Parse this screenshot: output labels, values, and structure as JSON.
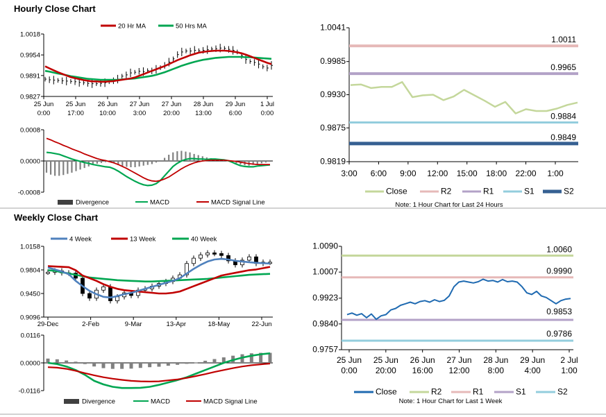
{
  "colors": {
    "ma20": "#c00000",
    "ma50": "#00a651",
    "w4": "#4f81bd",
    "w13": "#c00000",
    "w40": "#00a651",
    "macd": "#00a651",
    "signal": "#c00000",
    "divergence": "#808080",
    "close_hourly": "#c4d79b",
    "close_weekly": "#1f6ab1",
    "r2_hourly": "#e6b9b8",
    "r1_hourly": "#b3a2c7",
    "s1_hourly": "#93cddd",
    "s2_hourly": "#366092",
    "r2_weekly": "#c4d79b",
    "r1_weekly": "#e6b9b8",
    "s1_weekly": "#b3a2c7",
    "s2_weekly": "#93cddd",
    "divider": "#a6a6a6"
  },
  "sections": {
    "hourly_title": "Hourly Close Chart",
    "weekly_title": "Weekly Close Chart"
  },
  "chart_data": [
    {
      "id": "hourly_price",
      "type": "line",
      "legend": [
        "20 Hr MA",
        "50 Hrs MA"
      ],
      "yticks": [
        "1.0018",
        "0.9954",
        "0.9891",
        "0.9827"
      ],
      "ylim": [
        0.9827,
        1.0018
      ],
      "xticks": [
        [
          "25 Jun",
          "0:00"
        ],
        [
          "25 Jun",
          "17:00"
        ],
        [
          "26 Jun",
          "10:00"
        ],
        [
          "27 Jun",
          "3:00"
        ],
        [
          "27 Jun",
          "20:00"
        ],
        [
          "28 Jun",
          "13:00"
        ],
        [
          "29 Jun",
          "6:00"
        ],
        [
          "1 Jul",
          "0:00"
        ]
      ],
      "close": [
        0.988,
        0.9878,
        0.9877,
        0.9876,
        0.9875,
        0.9874,
        0.9873,
        0.9872,
        0.987,
        0.9869,
        0.9867,
        0.9866,
        0.9866,
        0.9867,
        0.9869,
        0.9872,
        0.9875,
        0.988,
        0.9889,
        0.9893,
        0.9899,
        0.9901,
        0.9904,
        0.9903,
        0.9906,
        0.9905,
        0.991,
        0.9915,
        0.9922,
        0.9932,
        0.9942,
        0.9955,
        0.9963,
        0.9966,
        0.9966,
        0.9968,
        0.9967,
        0.9968,
        0.997,
        0.9972,
        0.9973,
        0.9975,
        0.9974,
        0.9971,
        0.9968,
        0.9963,
        0.9952,
        0.994,
        0.9934,
        0.9931,
        0.9926,
        0.9918,
        0.9914,
        0.9922
      ],
      "ma20": [
        0.9919,
        0.9913,
        0.9907,
        0.9901,
        0.9896,
        0.9891,
        0.9886,
        0.9883,
        0.988,
        0.9877,
        0.9875,
        0.9873,
        0.9873,
        0.9872,
        0.9872,
        0.9873,
        0.9874,
        0.9876,
        0.9878,
        0.988,
        0.9882,
        0.9885,
        0.989,
        0.9895,
        0.99,
        0.9905,
        0.991,
        0.9915,
        0.992,
        0.9926,
        0.9932,
        0.9938,
        0.9943,
        0.9948,
        0.9953,
        0.9957,
        0.9961,
        0.9963,
        0.9965,
        0.9966,
        0.9967,
        0.9967,
        0.9967,
        0.9966,
        0.9964,
        0.9962,
        0.9959,
        0.9955,
        0.995,
        0.9945,
        0.994,
        0.9935,
        0.993,
        0.9926
      ],
      "ma50": [
        0.9905,
        0.9903,
        0.99,
        0.9897,
        0.9895,
        0.9892,
        0.9889,
        0.9887,
        0.9885,
        0.9883,
        0.9881,
        0.988,
        0.9879,
        0.9878,
        0.9878,
        0.9878,
        0.9878,
        0.9878,
        0.9879,
        0.988,
        0.9881,
        0.9882,
        0.9884,
        0.9886,
        0.9888,
        0.989,
        0.9893,
        0.9897,
        0.9901,
        0.9906,
        0.9911,
        0.9916,
        0.9921,
        0.9925,
        0.9929,
        0.9933,
        0.9936,
        0.9939,
        0.9941,
        0.9943,
        0.9945,
        0.9946,
        0.9947,
        0.9948,
        0.9948,
        0.9948,
        0.9948,
        0.9947,
        0.9947,
        0.9946,
        0.9945,
        0.9944,
        0.9943,
        0.9942
      ]
    },
    {
      "id": "hourly_macd",
      "type": "bar",
      "yticks": [
        "0.0008",
        "0.0000",
        "-0.0008"
      ],
      "ylim": [
        -0.0008,
        0.0008
      ],
      "legend": [
        "Divergence",
        "MACD",
        "MACD Signal Line"
      ],
      "divergence": [
        -0.0003,
        -0.00035,
        -0.00038,
        -0.00038,
        -0.00036,
        -0.00033,
        -0.0003,
        -0.00026,
        -0.00022,
        -0.00018,
        -0.00014,
        -0.0001,
        -7e-05,
        -5e-05,
        -3e-05,
        -2e-05,
        -6e-05,
        -0.0001,
        -0.00013,
        -0.00015,
        -0.00016,
        -0.00016,
        -0.00014,
        -0.00012,
        -0.0001,
        -8e-05,
        -4e-05,
        0.0,
        8e-05,
        0.00016,
        0.00022,
        0.00025,
        0.00026,
        0.00024,
        0.00022,
        0.00018,
        0.00015,
        0.00012,
        9e-05,
        7e-05,
        5e-05,
        3e-05,
        1e-05,
        -1e-05,
        -3e-05,
        -6e-05,
        -9e-05,
        -0.00011,
        -0.00012,
        -0.0001,
        -8e-05,
        -6e-05,
        -4e-05,
        -2e-05
      ],
      "macd": [
        0.00022,
        0.00021,
        0.00019,
        0.00017,
        0.00013,
        9e-05,
        5e-05,
        2e-05,
        -1e-05,
        -4e-05,
        -6e-05,
        -9e-05,
        -0.00011,
        -0.00013,
        -0.00015,
        -0.00016,
        -0.0002,
        -0.00026,
        -0.00033,
        -0.0004,
        -0.00046,
        -0.00052,
        -0.00057,
        -0.00061,
        -0.00063,
        -0.00062,
        -0.00058,
        -0.0005,
        -0.00038,
        -0.00026,
        -0.00014,
        -6e-05,
        0.0,
        4e-05,
        6e-05,
        6e-05,
        5e-05,
        5e-05,
        4e-05,
        5e-05,
        5e-05,
        4e-05,
        3e-05,
        1e-05,
        -3e-05,
        -8e-05,
        -0.00012,
        -0.00014,
        -0.00015,
        -0.00015,
        -0.00013,
        -0.00012,
        -0.00011,
        -0.0001
      ],
      "signal": [
        0.00058,
        0.00054,
        0.00049,
        0.00045,
        0.0004,
        0.00036,
        0.00031,
        0.00027,
        0.00023,
        0.00018,
        0.00014,
        0.0001,
        6e-05,
        3e-05,
        1e-05,
        -2e-05,
        -5e-05,
        -9e-05,
        -0.00014,
        -0.00019,
        -0.00025,
        -0.00031,
        -0.00037,
        -0.00043,
        -0.00048,
        -0.00051,
        -0.00052,
        -0.0005,
        -0.00046,
        -0.00041,
        -0.00034,
        -0.00027,
        -0.0002,
        -0.00014,
        -9e-05,
        -5e-05,
        -2e-05,
        0.0,
        1e-05,
        2e-05,
        2e-05,
        2e-05,
        2e-05,
        1e-05,
        0.0,
        -1e-05,
        -3e-05,
        -5e-05,
        -7e-05,
        -8e-05,
        -9e-05,
        -9e-05,
        -9e-05,
        -9e-05
      ]
    },
    {
      "id": "hourly_levels",
      "type": "line",
      "yticks": [
        "1.0041",
        "0.9985",
        "0.9930",
        "0.9875",
        "0.9819"
      ],
      "ylim": [
        0.9819,
        1.0041
      ],
      "xticks": [
        "3:00",
        "6:00",
        "9:00",
        "12:00",
        "15:00",
        "18:00",
        "22:00",
        "1:00"
      ],
      "close": [
        0.9946,
        0.9947,
        0.9941,
        0.9943,
        0.9943,
        0.9951,
        0.9926,
        0.9929,
        0.993,
        0.9921,
        0.9927,
        0.9938,
        0.9929,
        0.992,
        0.991,
        0.9918,
        0.9899,
        0.9906,
        0.9903,
        0.9903,
        0.9907,
        0.9913,
        0.9917
      ],
      "levels": [
        {
          "name": "R2",
          "value": 1.0011,
          "label": "1.0011"
        },
        {
          "name": "R1",
          "value": 0.9965,
          "label": "0.9965"
        },
        {
          "name": "S1",
          "value": 0.9884,
          "label": "0.9884"
        },
        {
          "name": "S2",
          "value": 0.9849,
          "label": "0.9849"
        }
      ],
      "legend": [
        "Close",
        "R2",
        "R1",
        "S1",
        "S2"
      ],
      "note": "Note: 1 Hour Chart for Last 24 Hours"
    },
    {
      "id": "weekly_price",
      "type": "line",
      "legend": [
        "4 Week",
        "13 Week",
        "40 Week"
      ],
      "yticks": [
        "1.0158",
        "0.9804",
        "0.9450",
        "0.9096"
      ],
      "ylim": [
        0.9096,
        1.0158
      ],
      "xticks": [
        "29-Dec",
        "2-Feb",
        "9-Mar",
        "13-Apr",
        "18-May",
        "22-Jun"
      ],
      "close": [
        0.977,
        0.979,
        0.976,
        0.9755,
        0.968,
        0.945,
        0.938,
        0.95,
        0.955,
        0.934,
        0.94,
        0.946,
        0.942,
        0.95,
        0.952,
        0.956,
        0.96,
        0.963,
        0.968,
        0.973,
        0.99,
        0.998,
        1.003,
        1.006,
        1.005,
        1.002,
        0.994,
        0.988,
        0.995,
        1.0,
        0.99,
        0.992,
        0.992
      ],
      "w4": [
        0.984,
        0.981,
        0.978,
        0.974,
        0.964,
        0.956,
        0.949,
        0.944,
        0.94,
        0.939,
        0.941,
        0.944,
        0.946,
        0.949,
        0.952,
        0.955,
        0.958,
        0.961,
        0.964,
        0.968,
        0.975,
        0.982,
        0.988,
        0.993,
        0.996,
        0.997,
        0.996,
        0.994,
        0.993,
        0.992,
        0.991,
        0.9905,
        0.99
      ],
      "w13": [
        0.986,
        0.9855,
        0.985,
        0.9845,
        0.98,
        0.972,
        0.968,
        0.964,
        0.959,
        0.955,
        0.952,
        0.95,
        0.949,
        0.948,
        0.947,
        0.946,
        0.945,
        0.945,
        0.946,
        0.948,
        0.952,
        0.956,
        0.96,
        0.964,
        0.968,
        0.972,
        0.974,
        0.976,
        0.978,
        0.98,
        0.981,
        0.983,
        0.985
      ],
      "w40": [
        0.98,
        0.979,
        0.977,
        0.975,
        0.973,
        0.971,
        0.969,
        0.968,
        0.967,
        0.966,
        0.965,
        0.9645,
        0.964,
        0.9635,
        0.963,
        0.963,
        0.9635,
        0.964,
        0.9645,
        0.965,
        0.9655,
        0.966,
        0.9665,
        0.967,
        0.968,
        0.969,
        0.97,
        0.971,
        0.972,
        0.973,
        0.9735,
        0.974,
        0.9745
      ]
    },
    {
      "id": "weekly_macd",
      "type": "bar",
      "yticks": [
        "0.0116",
        "0.0000",
        "-0.0116"
      ],
      "ylim": [
        -0.0116,
        0.0116
      ],
      "legend": [
        "Divergence",
        "MACD",
        "MACD Signal Line"
      ],
      "divergence": [
        0.0018,
        0.0015,
        0.001,
        0.0005,
        -0.0005,
        -0.0015,
        -0.0022,
        -0.0025,
        -0.0025,
        -0.0024,
        -0.0021,
        -0.0018,
        -0.0016,
        -0.0012,
        -0.0008,
        -0.0004,
        0.0002,
        0.0009,
        0.0016,
        0.0023,
        0.003,
        0.0036,
        0.004,
        0.0042,
        0.0042
      ],
      "macd": [
        0.0,
        -0.0005,
        -0.0015,
        -0.003,
        -0.005,
        -0.0075,
        -0.009,
        -0.01,
        -0.0105,
        -0.0105,
        -0.0104,
        -0.01,
        -0.0092,
        -0.0082,
        -0.0072,
        -0.006,
        -0.0045,
        -0.003,
        -0.0015,
        0.0,
        0.0012,
        0.0022,
        0.003,
        0.0036,
        0.004
      ],
      "signal": [
        -0.0018,
        -0.002,
        -0.0025,
        -0.0033,
        -0.0043,
        -0.0052,
        -0.006,
        -0.0066,
        -0.0071,
        -0.0075,
        -0.0077,
        -0.0078,
        -0.0077,
        -0.0073,
        -0.0069,
        -0.0063,
        -0.0055,
        -0.0047,
        -0.0038,
        -0.003,
        -0.0022,
        -0.0015,
        -0.001,
        -0.0006,
        -0.0003
      ]
    },
    {
      "id": "weekly_levels",
      "type": "line",
      "yticks": [
        "1.0090",
        "1.0007",
        "0.9923",
        "0.9840",
        "0.9757"
      ],
      "ylim": [
        0.9757,
        1.009
      ],
      "xticks": [
        [
          "25 Jun",
          "0:00"
        ],
        [
          "25 Jun",
          "20:00"
        ],
        [
          "26 Jun",
          "16:00"
        ],
        [
          "27 Jun",
          "12:00"
        ],
        [
          "28 Jun",
          "8:00"
        ],
        [
          "29 Jun",
          "4:00"
        ],
        [
          "2 Jul",
          "1:00"
        ]
      ],
      "close": [
        0.987,
        0.9875,
        0.9868,
        0.9873,
        0.986,
        0.9872,
        0.9855,
        0.9866,
        0.987,
        0.9885,
        0.989,
        0.99,
        0.9905,
        0.991,
        0.9905,
        0.9912,
        0.9915,
        0.991,
        0.9918,
        0.9912,
        0.9916,
        0.993,
        0.996,
        0.9975,
        0.9978,
        0.9975,
        0.9972,
        0.9976,
        0.9984,
        0.9978,
        0.998,
        0.9975,
        0.9983,
        0.9976,
        0.9978,
        0.9975,
        0.996,
        0.994,
        0.9935,
        0.9945,
        0.993,
        0.9925,
        0.9915,
        0.9905,
        0.9915,
        0.992,
        0.9922
      ],
      "levels": [
        {
          "name": "R2",
          "value": 1.006,
          "label": "1.0060"
        },
        {
          "name": "R1",
          "value": 0.999,
          "label": "0.9990"
        },
        {
          "name": "S1",
          "value": 0.9853,
          "label": "0.9853"
        },
        {
          "name": "S2",
          "value": 0.9786,
          "label": "0.9786"
        }
      ],
      "legend": [
        "Close",
        "R2",
        "R1",
        "S1",
        "S2"
      ],
      "note": "Note: 1 Hour Chart for Last 1 Week"
    }
  ]
}
